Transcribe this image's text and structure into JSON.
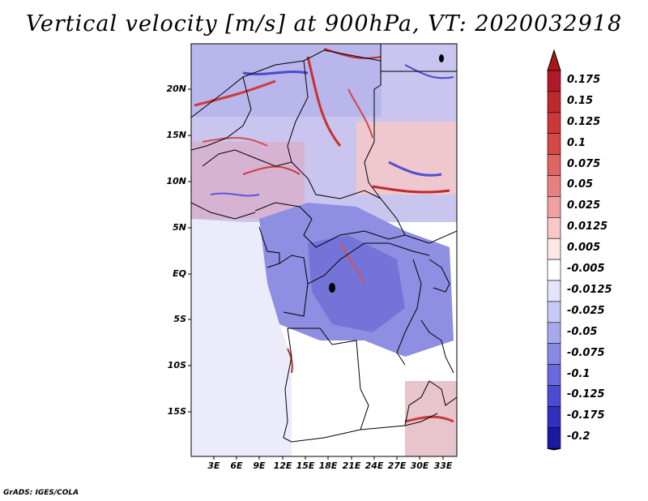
{
  "title": "Vertical velocity [m/s] at 900hPa, VT: 2020032918",
  "credit": "GrADS: IGES/COLA",
  "map": {
    "lat_labels": [
      "20N",
      "15N",
      "10N",
      "5N",
      "EQ",
      "5S",
      "10S",
      "15S"
    ],
    "lon_labels": [
      "3E",
      "6E",
      "9E",
      "12E",
      "15E",
      "18E",
      "21E",
      "24E",
      "27E",
      "30E",
      "33E"
    ]
  },
  "colorbar": {
    "labels": [
      "0.175",
      "0.15",
      "0.125",
      "0.1",
      "0.075",
      "0.05",
      "0.025",
      "0.0125",
      "0.005",
      "-0.005",
      "-0.0125",
      "-0.025",
      "-0.05",
      "-0.075",
      "-0.1",
      "-0.125",
      "-0.175",
      "-0.2"
    ],
    "colors": [
      "#b2182b",
      "#c0282f",
      "#cc3838",
      "#d64848",
      "#e06464",
      "#e98080",
      "#f0a0a0",
      "#f8c8c8",
      "#fde8e8",
      "#ffffff",
      "#e4e4fa",
      "#c8c8f4",
      "#a8a8ee",
      "#8888e6",
      "#6a6ade",
      "#4c4cd2",
      "#3030c0",
      "#1a1aa0"
    ],
    "top_arrow_color": "#a81818",
    "bottom_arrow_color": "#14148c"
  }
}
